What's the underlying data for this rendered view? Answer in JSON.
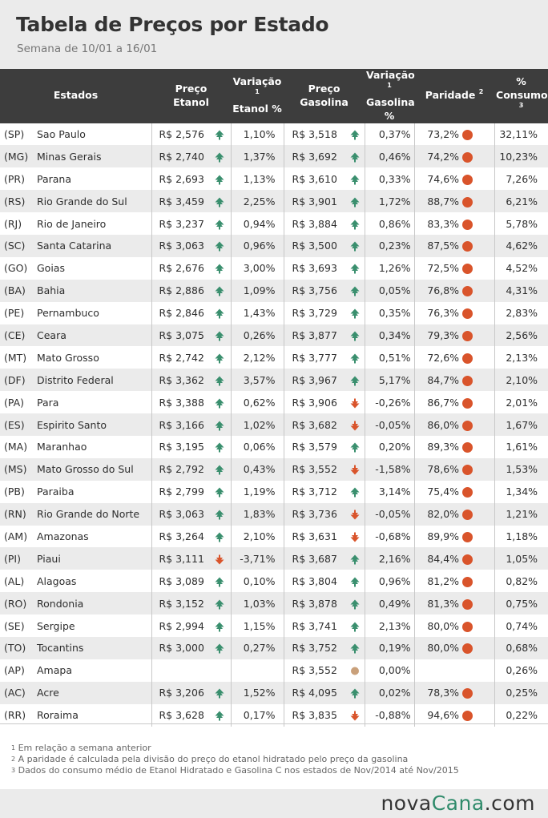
{
  "header": {
    "title": "Tabela de Preços por Estado",
    "subtitle": "Semana de 10/01 a 16/01"
  },
  "columns": {
    "states": "Estados",
    "ethanol_price_1": "Preço",
    "ethanol_price_2": "Etanol",
    "ethanol_var_1": "Variação",
    "ethanol_var_sup": "1",
    "ethanol_var_2": "Etanol %",
    "gas_price_1": "Preço",
    "gas_price_2": "Gasolina",
    "gas_var_1": "Variação",
    "gas_var_sup": "1",
    "gas_var_2": "Gasolina %",
    "parity": "Paridade",
    "parity_sup": "2",
    "consumption_1": "%",
    "consumption_2": "Consumo",
    "consumption_sup": "3"
  },
  "colors": {
    "up_icon": "#3a8f6e",
    "down_icon": "#d9542b",
    "stable_icon": "#c9a07a",
    "parity_dot": "#d9542b",
    "header_bg": "#3d3d3d",
    "stripe_bg": "#ebebeb"
  },
  "rows": [
    {
      "abbr": "(SP)",
      "state": "Sao Paulo",
      "eth_price": "R$ 2,576",
      "eth_trend": "up",
      "eth_var": "1,10%",
      "gas_price": "R$ 3,518",
      "gas_trend": "up",
      "gas_var": "0,37%",
      "parity": "73,2%",
      "consumption": "32,11%"
    },
    {
      "abbr": "(MG)",
      "state": "Minas Gerais",
      "eth_price": "R$ 2,740",
      "eth_trend": "up",
      "eth_var": "1,37%",
      "gas_price": "R$ 3,692",
      "gas_trend": "up",
      "gas_var": "0,46%",
      "parity": "74,2%",
      "consumption": "10,23%"
    },
    {
      "abbr": "(PR)",
      "state": "Parana",
      "eth_price": "R$ 2,693",
      "eth_trend": "up",
      "eth_var": "1,13%",
      "gas_price": "R$ 3,610",
      "gas_trend": "up",
      "gas_var": "0,33%",
      "parity": "74,6%",
      "consumption": "7,26%"
    },
    {
      "abbr": "(RS)",
      "state": "Rio Grande do Sul",
      "eth_price": "R$ 3,459",
      "eth_trend": "up",
      "eth_var": "2,25%",
      "gas_price": "R$ 3,901",
      "gas_trend": "up",
      "gas_var": "1,72%",
      "parity": "88,7%",
      "consumption": "6,21%"
    },
    {
      "abbr": "(RJ)",
      "state": "Rio de Janeiro",
      "eth_price": "R$ 3,237",
      "eth_trend": "up",
      "eth_var": "0,94%",
      "gas_price": "R$ 3,884",
      "gas_trend": "up",
      "gas_var": "0,86%",
      "parity": "83,3%",
      "consumption": "5,78%"
    },
    {
      "abbr": "(SC)",
      "state": "Santa Catarina",
      "eth_price": "R$ 3,063",
      "eth_trend": "up",
      "eth_var": "0,96%",
      "gas_price": "R$ 3,500",
      "gas_trend": "up",
      "gas_var": "0,23%",
      "parity": "87,5%",
      "consumption": "4,62%"
    },
    {
      "abbr": "(GO)",
      "state": "Goias",
      "eth_price": "R$ 2,676",
      "eth_trend": "up",
      "eth_var": "3,00%",
      "gas_price": "R$ 3,693",
      "gas_trend": "up",
      "gas_var": "1,26%",
      "parity": "72,5%",
      "consumption": "4,52%"
    },
    {
      "abbr": "(BA)",
      "state": "Bahia",
      "eth_price": "R$ 2,886",
      "eth_trend": "up",
      "eth_var": "1,09%",
      "gas_price": "R$ 3,756",
      "gas_trend": "up",
      "gas_var": "0,05%",
      "parity": "76,8%",
      "consumption": "4,31%"
    },
    {
      "abbr": "(PE)",
      "state": "Pernambuco",
      "eth_price": "R$ 2,846",
      "eth_trend": "up",
      "eth_var": "1,43%",
      "gas_price": "R$ 3,729",
      "gas_trend": "up",
      "gas_var": "0,35%",
      "parity": "76,3%",
      "consumption": "2,83%"
    },
    {
      "abbr": "(CE)",
      "state": "Ceara",
      "eth_price": "R$ 3,075",
      "eth_trend": "up",
      "eth_var": "0,26%",
      "gas_price": "R$ 3,877",
      "gas_trend": "up",
      "gas_var": "0,34%",
      "parity": "79,3%",
      "consumption": "2,56%"
    },
    {
      "abbr": "(MT)",
      "state": "Mato Grosso",
      "eth_price": "R$ 2,742",
      "eth_trend": "up",
      "eth_var": "2,12%",
      "gas_price": "R$ 3,777",
      "gas_trend": "up",
      "gas_var": "0,51%",
      "parity": "72,6%",
      "consumption": "2,13%"
    },
    {
      "abbr": "(DF)",
      "state": "Distrito Federal",
      "eth_price": "R$ 3,362",
      "eth_trend": "up",
      "eth_var": "3,57%",
      "gas_price": "R$ 3,967",
      "gas_trend": "up",
      "gas_var": "5,17%",
      "parity": "84,7%",
      "consumption": "2,10%"
    },
    {
      "abbr": "(PA)",
      "state": "Para",
      "eth_price": "R$ 3,388",
      "eth_trend": "up",
      "eth_var": "0,62%",
      "gas_price": "R$ 3,906",
      "gas_trend": "down",
      "gas_var": "-0,26%",
      "parity": "86,7%",
      "consumption": "2,01%"
    },
    {
      "abbr": "(ES)",
      "state": "Espirito Santo",
      "eth_price": "R$ 3,166",
      "eth_trend": "up",
      "eth_var": "1,02%",
      "gas_price": "R$ 3,682",
      "gas_trend": "down",
      "gas_var": "-0,05%",
      "parity": "86,0%",
      "consumption": "1,67%"
    },
    {
      "abbr": "(MA)",
      "state": "Maranhao",
      "eth_price": "R$ 3,195",
      "eth_trend": "up",
      "eth_var": "0,06%",
      "gas_price": "R$ 3,579",
      "gas_trend": "up",
      "gas_var": "0,20%",
      "parity": "89,3%",
      "consumption": "1,61%"
    },
    {
      "abbr": "(MS)",
      "state": "Mato Grosso do Sul",
      "eth_price": "R$ 2,792",
      "eth_trend": "up",
      "eth_var": "0,43%",
      "gas_price": "R$ 3,552",
      "gas_trend": "down",
      "gas_var": "-1,58%",
      "parity": "78,6%",
      "consumption": "1,53%"
    },
    {
      "abbr": "(PB)",
      "state": "Paraiba",
      "eth_price": "R$ 2,799",
      "eth_trend": "up",
      "eth_var": "1,19%",
      "gas_price": "R$ 3,712",
      "gas_trend": "up",
      "gas_var": "3,14%",
      "parity": "75,4%",
      "consumption": "1,34%"
    },
    {
      "abbr": "(RN)",
      "state": "Rio Grande do Norte",
      "eth_price": "R$ 3,063",
      "eth_trend": "up",
      "eth_var": "1,83%",
      "gas_price": "R$ 3,736",
      "gas_trend": "down",
      "gas_var": "-0,05%",
      "parity": "82,0%",
      "consumption": "1,21%"
    },
    {
      "abbr": "(AM)",
      "state": "Amazonas",
      "eth_price": "R$ 3,264",
      "eth_trend": "up",
      "eth_var": "2,10%",
      "gas_price": "R$ 3,631",
      "gas_trend": "down",
      "gas_var": "-0,68%",
      "parity": "89,9%",
      "consumption": "1,18%"
    },
    {
      "abbr": "(PI)",
      "state": "Piaui",
      "eth_price": "R$ 3,111",
      "eth_trend": "down",
      "eth_var": "-3,71%",
      "gas_price": "R$ 3,687",
      "gas_trend": "up",
      "gas_var": "2,16%",
      "parity": "84,4%",
      "consumption": "1,05%"
    },
    {
      "abbr": "(AL)",
      "state": "Alagoas",
      "eth_price": "R$ 3,089",
      "eth_trend": "up",
      "eth_var": "0,10%",
      "gas_price": "R$ 3,804",
      "gas_trend": "up",
      "gas_var": "0,96%",
      "parity": "81,2%",
      "consumption": "0,82%"
    },
    {
      "abbr": "(RO)",
      "state": "Rondonia",
      "eth_price": "R$ 3,152",
      "eth_trend": "up",
      "eth_var": "1,03%",
      "gas_price": "R$ 3,878",
      "gas_trend": "up",
      "gas_var": "0,49%",
      "parity": "81,3%",
      "consumption": "0,75%"
    },
    {
      "abbr": "(SE)",
      "state": "Sergipe",
      "eth_price": "R$ 2,994",
      "eth_trend": "up",
      "eth_var": "1,15%",
      "gas_price": "R$ 3,741",
      "gas_trend": "up",
      "gas_var": "2,13%",
      "parity": "80,0%",
      "consumption": "0,74%"
    },
    {
      "abbr": "(TO)",
      "state": "Tocantins",
      "eth_price": "R$ 3,000",
      "eth_trend": "up",
      "eth_var": "0,27%",
      "gas_price": "R$ 3,752",
      "gas_trend": "up",
      "gas_var": "0,19%",
      "parity": "80,0%",
      "consumption": "0,68%"
    },
    {
      "abbr": "(AP)",
      "state": "Amapa",
      "eth_price": "",
      "eth_trend": "none",
      "eth_var": "",
      "gas_price": "R$ 3,552",
      "gas_trend": "stable",
      "gas_var": "0,00%",
      "parity": "",
      "consumption": "0,26%"
    },
    {
      "abbr": "(AC)",
      "state": "Acre",
      "eth_price": "R$ 3,206",
      "eth_trend": "up",
      "eth_var": "1,52%",
      "gas_price": "R$ 4,095",
      "gas_trend": "up",
      "gas_var": "0,02%",
      "parity": "78,3%",
      "consumption": "0,25%"
    },
    {
      "abbr": "(RR)",
      "state": "Roraima",
      "eth_price": "R$ 3,628",
      "eth_trend": "up",
      "eth_var": "0,17%",
      "gas_price": "R$ 3,835",
      "gas_trend": "down",
      "gas_var": "-0,88%",
      "parity": "94,6%",
      "consumption": "0,22%"
    }
  ],
  "footnotes": [
    {
      "sup": "1",
      "text": "Em relação a semana anterior"
    },
    {
      "sup": "2",
      "text": "A paridade é calculada pela divisão do preço do etanol hidratado pelo preço da gasolina"
    },
    {
      "sup": "3",
      "text": "Dados do consumo médio de Etanol Hidratado e Gasolina C nos estados de Nov/2014 até Nov/2015"
    }
  ],
  "brand": {
    "part1": "nova",
    "part2": "Cana",
    "part3": ".com"
  }
}
